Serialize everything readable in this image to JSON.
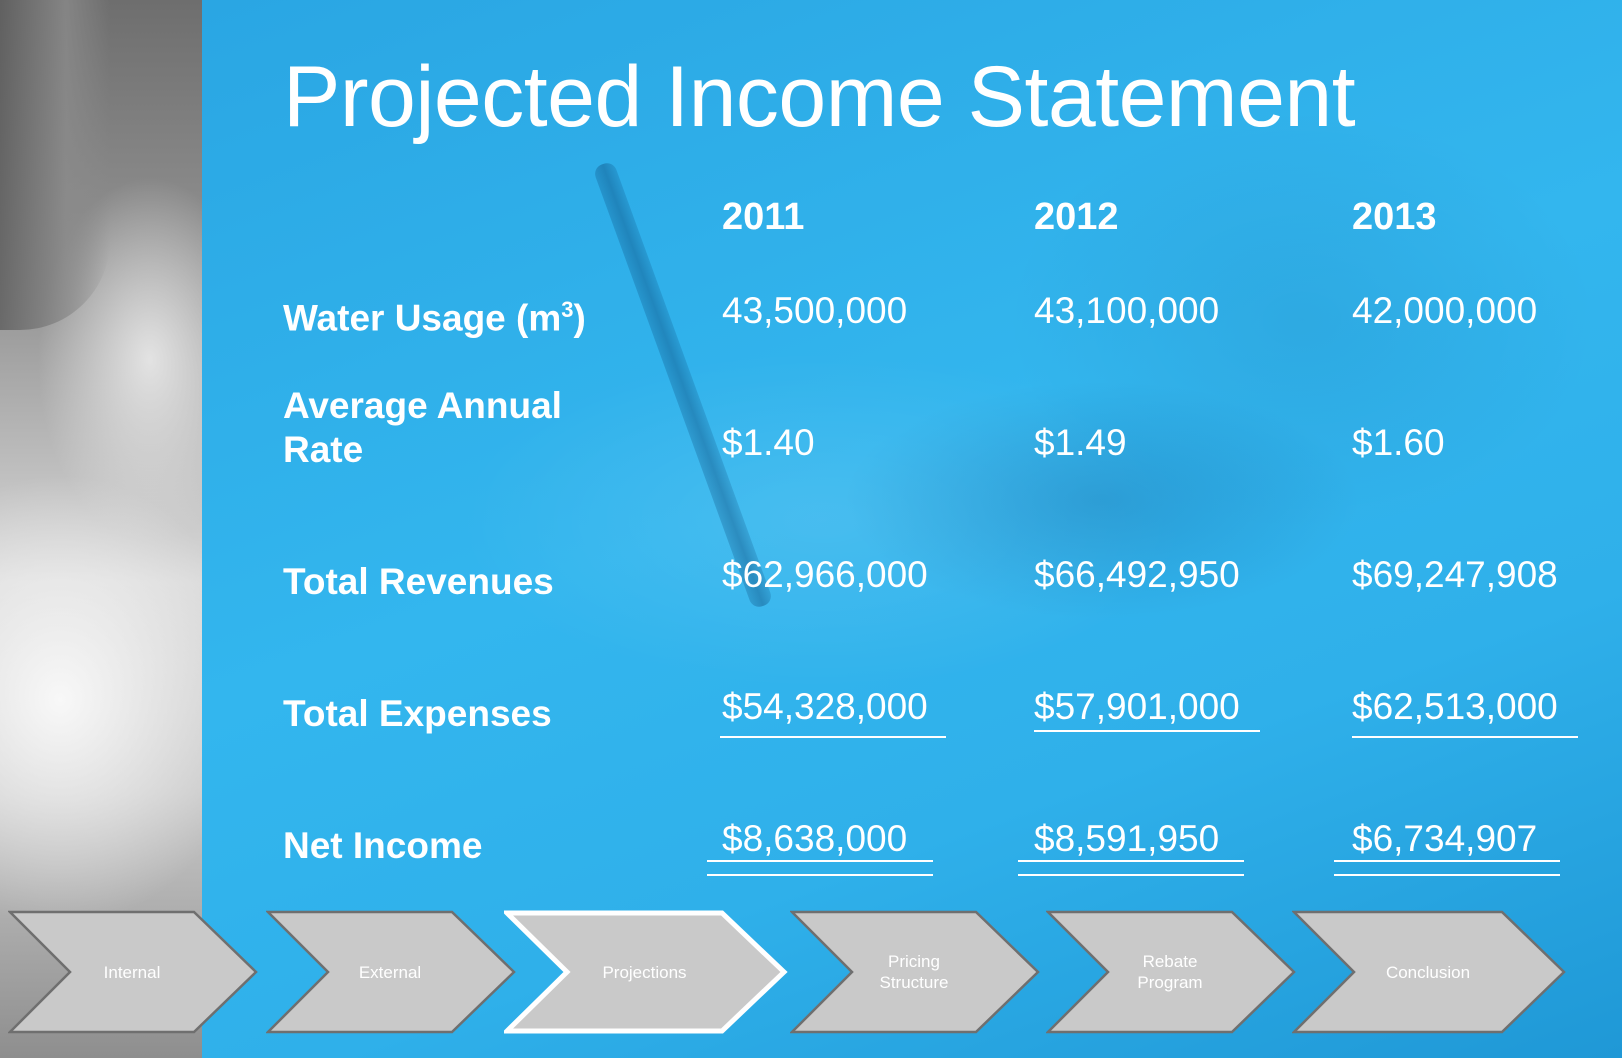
{
  "title": "Projected Income Statement",
  "years": [
    "2011",
    "2012",
    "2013"
  ],
  "rows": [
    {
      "label": "Water Usage (m",
      "sup": "3",
      "label_tail": ")",
      "values": [
        "43,500,000",
        "43,100,000",
        "42,000,000"
      ]
    },
    {
      "label_line1": "Average Annual",
      "label_line2": "Rate",
      "values": [
        "$1.40",
        "$1.49",
        "$1.60"
      ]
    },
    {
      "label": "Total Revenues",
      "values": [
        "$62,966,000",
        "$66,492,950",
        "$69,247,908"
      ]
    },
    {
      "label": "Total Expenses",
      "values": [
        "$54,328,000",
        "$57,901,000",
        "$62,513,000"
      ]
    },
    {
      "label": "Net Income",
      "values": [
        "$8,638,000",
        "$8,591,950",
        "$6,734,907"
      ]
    }
  ],
  "nav": {
    "active": "Projections",
    "items": [
      {
        "line1": "Internal",
        "line2": ""
      },
      {
        "line1": "External",
        "line2": ""
      },
      {
        "line1": "Projections",
        "line2": ""
      },
      {
        "line1": "Pricing",
        "line2": "Structure"
      },
      {
        "line1": "Rebate",
        "line2": "Program"
      },
      {
        "line1": "Conclusion",
        "line2": ""
      }
    ]
  },
  "colors": {
    "panel": "#2fb0ea",
    "chevron_fill": "#c9c9c9",
    "chevron_border": "#6f6f6f",
    "active_border": "#ffffff",
    "text": "#ffffff"
  }
}
